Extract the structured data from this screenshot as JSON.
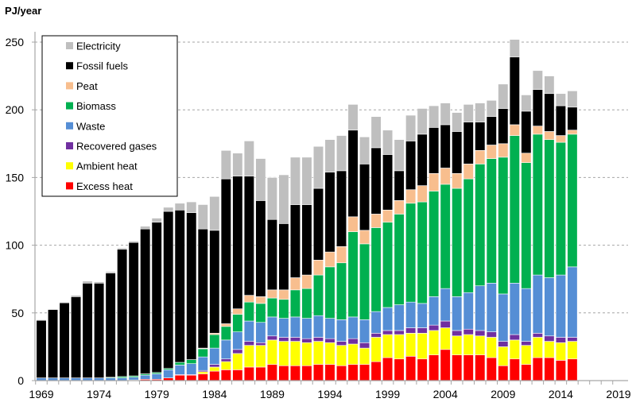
{
  "chart_data": {
    "type": "bar",
    "stacked": true,
    "title": "",
    "ylabel": "PJ/year",
    "xlabel": "",
    "ylim": [
      0,
      260
    ],
    "yticks": [
      0,
      50,
      100,
      150,
      200,
      250
    ],
    "xticks": [
      "1969",
      "1974",
      "1979",
      "1984",
      "1989",
      "1994",
      "1999",
      "2004",
      "2009",
      "2014",
      "2019"
    ],
    "grid": "horizontal dashed",
    "legend_position": "top-left",
    "categories": [
      1969,
      1970,
      1971,
      1972,
      1973,
      1974,
      1975,
      1976,
      1977,
      1978,
      1979,
      1980,
      1981,
      1982,
      1983,
      1984,
      1985,
      1986,
      1987,
      1988,
      1989,
      1990,
      1991,
      1992,
      1993,
      1994,
      1995,
      1996,
      1997,
      1998,
      1999,
      2000,
      2001,
      2002,
      2003,
      2004,
      2005,
      2006,
      2007,
      2008,
      2009,
      2010,
      2011,
      2012,
      2013,
      2014,
      2015
    ],
    "series": [
      {
        "name": "Excess heat",
        "color": "#ff0000",
        "values": [
          0,
          0,
          0,
          0,
          0,
          0,
          0,
          0,
          0.5,
          1,
          1,
          2,
          4,
          4,
          5,
          7,
          8,
          8,
          10,
          10,
          12,
          11,
          11,
          11,
          12,
          12,
          11,
          12,
          12,
          14,
          17,
          16,
          18,
          16,
          19,
          23,
          19,
          19,
          19,
          17,
          11,
          16,
          12,
          17,
          17,
          15,
          16
        ]
      },
      {
        "name": "Ambient heat",
        "color": "#ffff00",
        "values": [
          0,
          0,
          0,
          0,
          0,
          0,
          0,
          0,
          0,
          0,
          0,
          0,
          0,
          0,
          1.5,
          3,
          6,
          12,
          16,
          16,
          18,
          18,
          18,
          17,
          17,
          16,
          15,
          15,
          12,
          18,
          17,
          18,
          17,
          19,
          18,
          16,
          14,
          15,
          14,
          15,
          14,
          14,
          14,
          15,
          12,
          13,
          13
        ]
      },
      {
        "name": "Recovered gases",
        "color": "#7030a0",
        "values": [
          0,
          0,
          0,
          0,
          0,
          0,
          0,
          0,
          0,
          0,
          0,
          0,
          0.5,
          0.5,
          1,
          2,
          2,
          3,
          3,
          2,
          3,
          3,
          3,
          3,
          3,
          3,
          3,
          4,
          4,
          3,
          3,
          3,
          4,
          4,
          4,
          5,
          4,
          4,
          4,
          4,
          4,
          4,
          3,
          3,
          4,
          4,
          3
        ]
      },
      {
        "name": "Waste",
        "color": "#558ed5",
        "values": [
          2,
          2,
          2,
          2,
          2,
          2,
          2,
          2,
          2,
          3,
          4,
          6,
          7,
          8,
          10,
          12,
          14,
          13,
          15,
          15,
          14,
          14,
          15,
          15,
          16,
          15,
          16,
          16,
          17,
          16,
          17,
          19,
          19,
          18,
          21,
          24,
          25,
          27,
          33,
          36,
          35,
          38,
          39,
          43,
          43,
          46,
          52
        ]
      },
      {
        "name": "Biomass",
        "color": "#00b050",
        "values": [
          0,
          0,
          0,
          0,
          0,
          0,
          0.5,
          1,
          1,
          1,
          1,
          1,
          2,
          3,
          6,
          10,
          10,
          13,
          14,
          14,
          14,
          14,
          20,
          22,
          30,
          38,
          42,
          63,
          56,
          62,
          63,
          67,
          73,
          75,
          78,
          77,
          80,
          84,
          90,
          92,
          101,
          109,
          93,
          104,
          102,
          98,
          98
        ]
      },
      {
        "name": "Peat",
        "color": "#f8be8e",
        "values": [
          0,
          0,
          0,
          0,
          0,
          0,
          0,
          0,
          0,
          0,
          0,
          0,
          0,
          0,
          0.5,
          1,
          2,
          4,
          5,
          5,
          6,
          7,
          9,
          10,
          11,
          11,
          12,
          11,
          10,
          10,
          9,
          10,
          10,
          12,
          13,
          12,
          11,
          11,
          10,
          10,
          10,
          8,
          7,
          6,
          6,
          5,
          3
        ]
      },
      {
        "name": "Fossil fuels",
        "color": "#000000",
        "values": [
          42.5,
          50.5,
          55.5,
          60,
          70,
          70,
          77,
          94,
          98.5,
          107,
          111,
          116,
          112.5,
          108.5,
          88,
          76,
          107,
          98,
          88,
          71,
          52,
          49,
          54,
          52,
          53,
          59,
          56,
          64,
          49,
          49,
          41,
          22,
          36,
          38,
          34,
          32,
          31,
          31,
          21,
          21,
          26,
          50,
          31,
          27,
          28,
          22,
          17
        ]
      },
      {
        "name": "Electricity",
        "color": "#bfbfbf",
        "values": [
          0.5,
          0.5,
          0.5,
          1,
          1.5,
          1,
          1,
          1,
          1,
          2,
          3,
          3,
          5,
          8,
          18,
          25,
          21,
          17,
          26,
          31,
          31,
          36,
          35,
          35,
          31,
          24,
          26,
          19,
          20,
          23,
          18,
          23,
          19,
          19,
          16,
          16,
          14,
          13,
          14,
          12,
          18,
          13,
          12,
          14,
          13,
          9,
          12
        ]
      }
    ]
  }
}
